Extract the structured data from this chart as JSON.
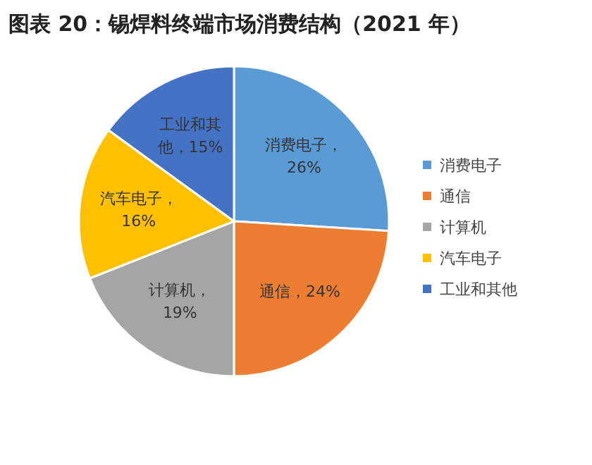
{
  "chart_data": {
    "type": "pie",
    "title": "图表 20：锡焊料终端市场消费结构（2021 年）",
    "categories": [
      "消费电子",
      "通信",
      "计算机",
      "汽车电子",
      "工业和其他"
    ],
    "values": [
      26,
      24,
      19,
      16,
      15
    ],
    "colors": [
      "#5b9bd5",
      "#ed7d31",
      "#a5a5a5",
      "#ffc000",
      "#4472c4"
    ],
    "value_labels": [
      "消费电子，26%",
      "通信，24%",
      "计算机，19%",
      "汽车电子，16%",
      "工业和其他，15%"
    ],
    "legend": "right"
  }
}
